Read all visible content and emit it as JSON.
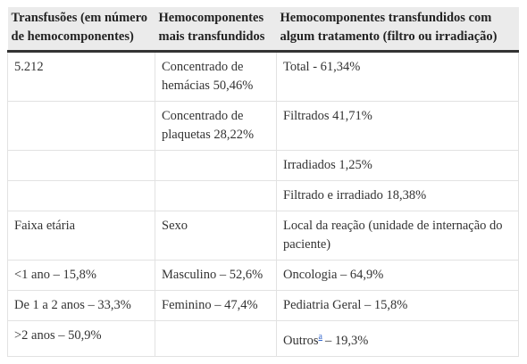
{
  "table": {
    "header": [
      "Transfusões (em número de hemocomponentes)",
      "Hemocomponentes mais transfundidos",
      "Hemocomponentes transfundidos com algum tratamento (filtro ou irradiação)"
    ],
    "rows": [
      [
        "5.212",
        "Concentrado de hemácias 50,46%",
        "Total - 61,34%"
      ],
      [
        null,
        "Concentrado de plaquetas 28,22%",
        "Filtrados 41,71%"
      ],
      [
        null,
        null,
        "Irradiados 1,25%"
      ],
      [
        null,
        null,
        "Filtrado e irradiado 18,38%"
      ],
      [
        "Faixa etária",
        "Sexo",
        "Local da reação (unidade de internação do paciente)"
      ],
      [
        "<1 ano – 15,8%",
        "Masculino – 52,6%",
        "Oncologia – 64,9%"
      ],
      [
        "De 1 a 2 anos – 33,3%",
        "Feminino – 47,4%",
        "Pediatria Geral – 15,8%"
      ],
      [
        ">2 anos – 50,9%",
        null,
        {
          "text": "Outros",
          "footnote": "a",
          "suffix": "– 19,3%"
        }
      ]
    ]
  }
}
